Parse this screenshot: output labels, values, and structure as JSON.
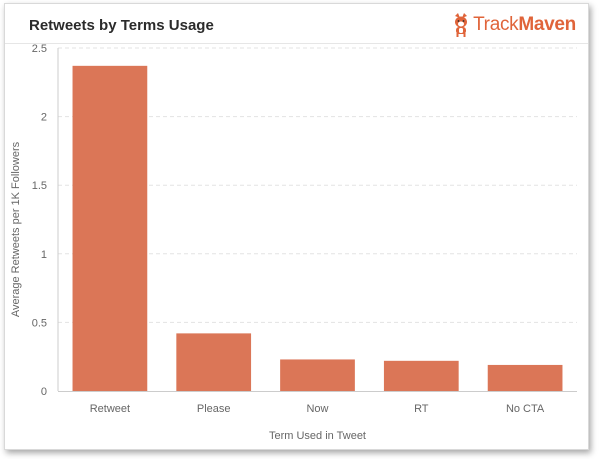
{
  "header": {
    "title": "Retweets by Terms Usage",
    "brand_light": "Track",
    "brand_bold": "Maven"
  },
  "colors": {
    "bar": "#db7657",
    "brand": "#e0643a",
    "grid": "#e3e3e3"
  },
  "chart_data": {
    "type": "bar",
    "categories": [
      "Retweet",
      "Please",
      "Now",
      "RT",
      "No CTA"
    ],
    "values": [
      2.37,
      0.42,
      0.23,
      0.22,
      0.19
    ],
    "title": "Retweets by Terms Usage",
    "xlabel": "Term Used in Tweet",
    "ylabel": "Average Retweets per 1K Followers",
    "ylim": [
      0,
      2.5
    ],
    "yticks": [
      0,
      0.5,
      1,
      1.5,
      2,
      2.5
    ],
    "ytick_labels": [
      "0",
      "0.5",
      "1",
      "1.5",
      "2",
      "2.5"
    ],
    "grid": true,
    "legend": "none"
  }
}
